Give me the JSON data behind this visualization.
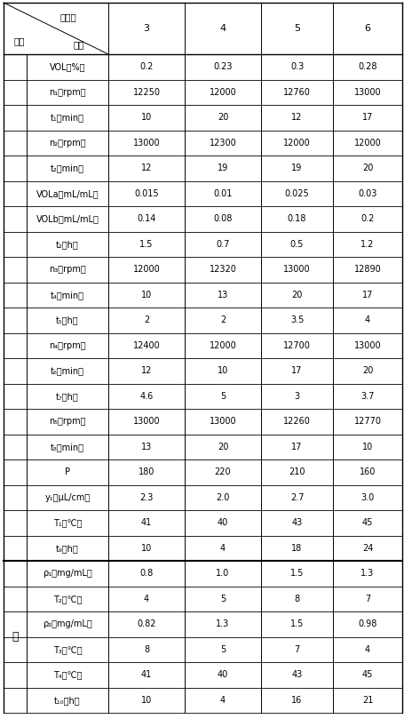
{
  "col_headers": [
    "3",
    "4",
    "5",
    "6"
  ],
  "rows": [
    {
      "param": "VOL（%）",
      "vals": [
        "0.2",
        "0.23",
        "0.3",
        "0.28"
      ],
      "section": "A"
    },
    {
      "param": "n₁（rpm）",
      "vals": [
        "12250",
        "12000",
        "12760",
        "13000"
      ],
      "section": "A"
    },
    {
      "param": "t₁（min）",
      "vals": [
        "10",
        "20",
        "12",
        "17"
      ],
      "section": "A"
    },
    {
      "param": "n₂（rpm）",
      "vals": [
        "13000",
        "12300",
        "12000",
        "12000"
      ],
      "section": "A"
    },
    {
      "param": "t₂（min）",
      "vals": [
        "12",
        "19",
        "19",
        "20"
      ],
      "section": "A"
    },
    {
      "param": "VOLa（mL/mL）",
      "vals": [
        "0.015",
        "0.01",
        "0.025",
        "0.03"
      ],
      "section": "A"
    },
    {
      "param": "VOLb（mL/mL）",
      "vals": [
        "0.14",
        "0.08",
        "0.18",
        "0.2"
      ],
      "section": "A"
    },
    {
      "param": "t₂（h）",
      "vals": [
        "1.5",
        "0.7",
        "0.5",
        "1.2"
      ],
      "section": "A"
    },
    {
      "param": "n₃（rpm）",
      "vals": [
        "12000",
        "12320",
        "13000",
        "12890"
      ],
      "section": "A"
    },
    {
      "param": "t₄（min）",
      "vals": [
        "10",
        "13",
        "20",
        "17"
      ],
      "section": "A"
    },
    {
      "param": "t₅（h）",
      "vals": [
        "2",
        "2",
        "3.5",
        "4"
      ],
      "section": "A"
    },
    {
      "param": "n₄（rpm）",
      "vals": [
        "12400",
        "12000",
        "12700",
        "13000"
      ],
      "section": "A"
    },
    {
      "param": "t₆（min）",
      "vals": [
        "12",
        "10",
        "17",
        "20"
      ],
      "section": "A"
    },
    {
      "param": "t₇（h）",
      "vals": [
        "4.6",
        "5",
        "3",
        "3.7"
      ],
      "section": "A"
    },
    {
      "param": "n₅（rpm）",
      "vals": [
        "13000",
        "13000",
        "12260",
        "12770"
      ],
      "section": "A"
    },
    {
      "param": "t₈（min）",
      "vals": [
        "13",
        "20",
        "17",
        "10"
      ],
      "section": "A"
    },
    {
      "param": "P",
      "vals": [
        "180",
        "220",
        "210",
        "160"
      ],
      "section": "A"
    },
    {
      "param": "y₁（μL/cm）",
      "vals": [
        "2.3",
        "2.0",
        "2.7",
        "3.0"
      ],
      "section": "A"
    },
    {
      "param": "T₁（℃）",
      "vals": [
        "41",
        "40",
        "43",
        "45"
      ],
      "section": "A"
    },
    {
      "param": "t₉（h）",
      "vals": [
        "10",
        "4",
        "18",
        "24"
      ],
      "section": "A"
    },
    {
      "param": "ρ₁（mg/mL）",
      "vals": [
        "0.8",
        "1.0",
        "1.5",
        "1.3"
      ],
      "section": "B"
    },
    {
      "param": "T₂（℃）",
      "vals": [
        "4",
        "5",
        "8",
        "7"
      ],
      "section": "B"
    },
    {
      "param": "ρ₂（mg/mL）",
      "vals": [
        "0.82",
        "1.3",
        "1.5",
        "0.98"
      ],
      "section": "B"
    },
    {
      "param": "T₃（℃）",
      "vals": [
        "8",
        "5",
        "7",
        "4"
      ],
      "section": "B"
    },
    {
      "param": "T₄（℃）",
      "vals": [
        "41",
        "40",
        "43",
        "45"
      ],
      "section": "B"
    },
    {
      "param": "t₁₀（h）",
      "vals": [
        "10",
        "4",
        "16",
        "21"
      ],
      "section": "B"
    }
  ],
  "header_label_shijili": "实施例",
  "header_label_buzhou": "步骤",
  "header_label_canshu": "参数",
  "section_b_label": "二",
  "bg_color": "#ffffff",
  "border_color": "#000000",
  "font_size": 7.0,
  "header_font_size": 7.5
}
